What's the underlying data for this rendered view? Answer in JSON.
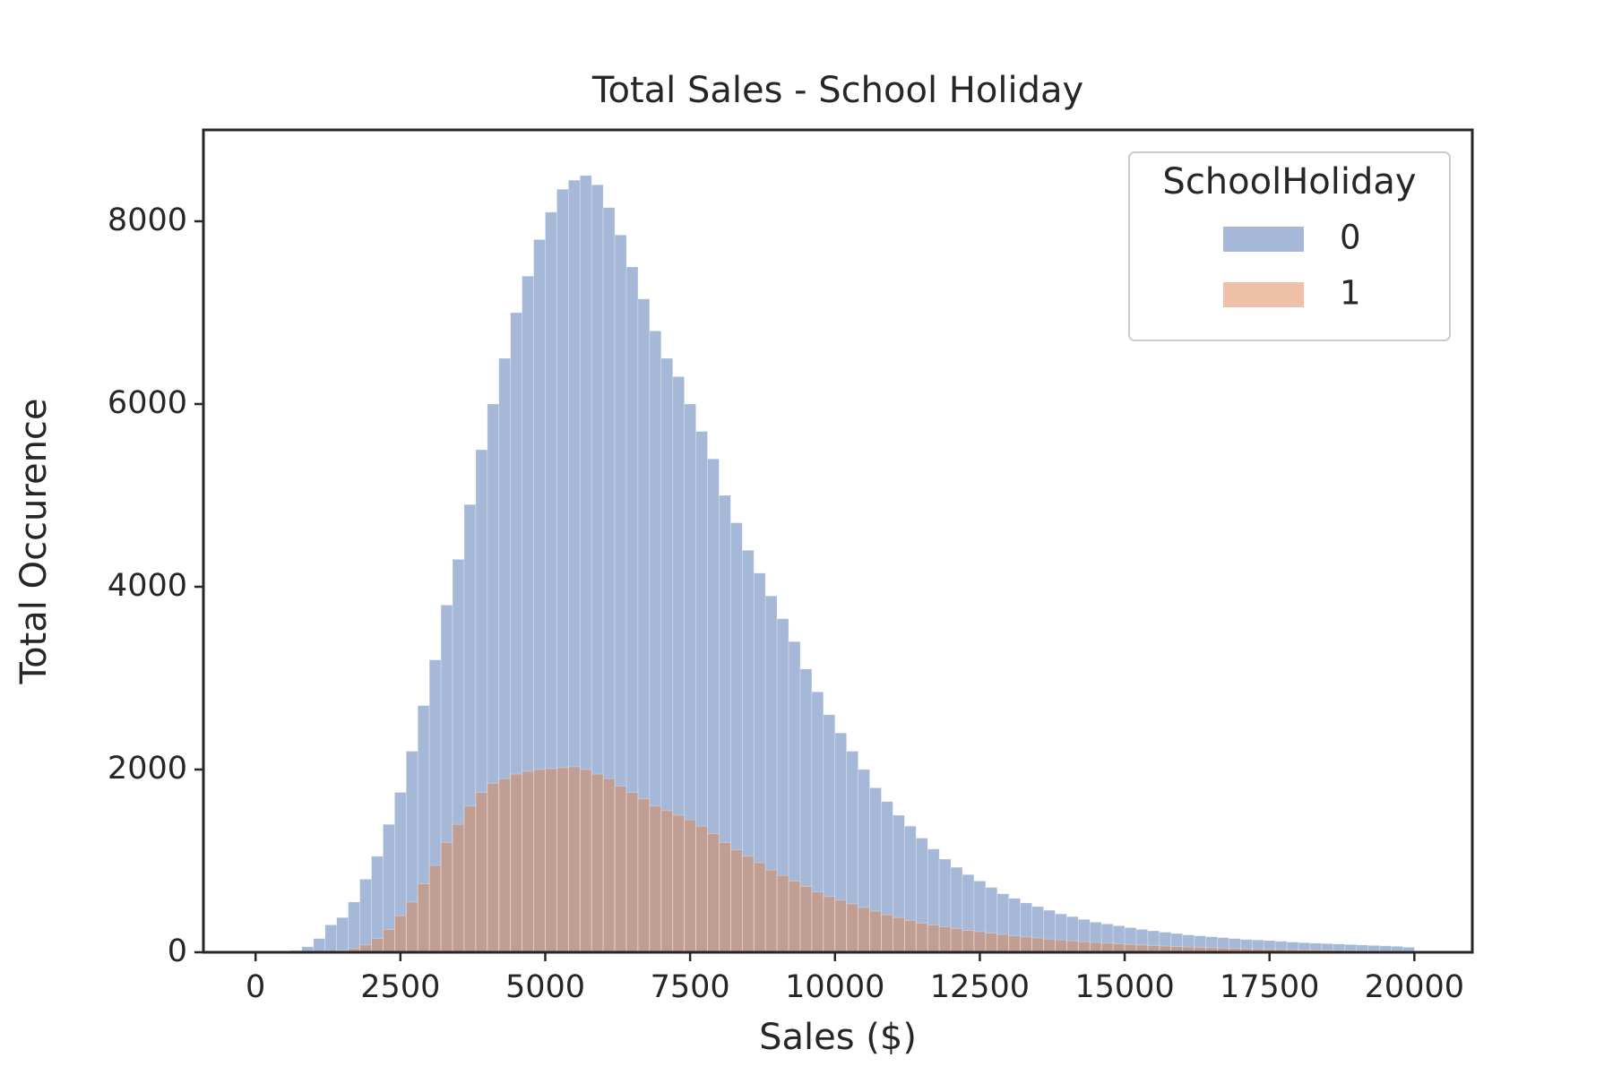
{
  "chart_data": {
    "type": "histogram",
    "title": "Total Sales - School Holiday",
    "xlabel": "Sales ($)",
    "ylabel": "Total Occurence",
    "legend_title": "SchoolHoliday",
    "legend": "upper right",
    "bins": [
      0,
      200,
      400,
      600,
      800,
      1000,
      1200,
      1400,
      1600,
      1800,
      2000,
      2200,
      2400,
      2600,
      2800,
      3000,
      3200,
      3400,
      3600,
      3800,
      4000,
      4200,
      4400,
      4600,
      4800,
      5000,
      5200,
      5400,
      5600,
      5800,
      6000,
      6200,
      6400,
      6600,
      6800,
      7000,
      7200,
      7400,
      7600,
      7800,
      8000,
      8200,
      8400,
      8600,
      8800,
      9000,
      9200,
      9400,
      9600,
      9800,
      10000,
      10200,
      10400,
      10600,
      10800,
      11000,
      11200,
      11400,
      11600,
      11800,
      12000,
      12200,
      12400,
      12600,
      12800,
      13000,
      13200,
      13400,
      13600,
      13800,
      14000,
      14200,
      14400,
      14600,
      14800,
      15000,
      15200,
      15400,
      15600,
      15800,
      16000,
      16200,
      16400,
      16600,
      16800,
      17000,
      17200,
      17400,
      17600,
      17800,
      18000,
      18200,
      18400,
      18600,
      18800,
      19000,
      19200,
      19400,
      19600,
      19800,
      20000
    ],
    "series": [
      {
        "name": "0",
        "color": "#4c72b0",
        "values": [
          0,
          0,
          5,
          20,
          60,
          150,
          300,
          380,
          550,
          800,
          1050,
          1400,
          1750,
          2200,
          2700,
          3200,
          3800,
          4300,
          4900,
          5500,
          6000,
          6500,
          7000,
          7400,
          7800,
          8100,
          8350,
          8450,
          8500,
          8400,
          8150,
          7850,
          7500,
          7150,
          6800,
          6500,
          6300,
          6000,
          5700,
          5400,
          5000,
          4700,
          4400,
          4150,
          3900,
          3650,
          3400,
          3100,
          2850,
          2600,
          2400,
          2200,
          2000,
          1800,
          1650,
          1500,
          1380,
          1250,
          1130,
          1020,
          930,
          850,
          780,
          710,
          640,
          590,
          540,
          500,
          460,
          420,
          390,
          360,
          330,
          310,
          290,
          270,
          250,
          235,
          220,
          205,
          190,
          180,
          170,
          160,
          150,
          140,
          135,
          128,
          120,
          112,
          105,
          100,
          95,
          90,
          85,
          80,
          75,
          70,
          65,
          55
        ]
      },
      {
        "name": "1",
        "color": "#dd8452",
        "values": [
          0,
          0,
          0,
          0,
          0,
          0,
          5,
          20,
          40,
          80,
          150,
          250,
          400,
          550,
          750,
          950,
          1200,
          1400,
          1600,
          1750,
          1850,
          1900,
          1950,
          1980,
          2000,
          2010,
          2020,
          2030,
          2000,
          1950,
          1900,
          1820,
          1750,
          1680,
          1600,
          1550,
          1500,
          1450,
          1380,
          1300,
          1200,
          1120,
          1050,
          980,
          900,
          840,
          780,
          720,
          660,
          610,
          570,
          530,
          490,
          450,
          410,
          380,
          350,
          320,
          300,
          280,
          260,
          240,
          225,
          210,
          195,
          180,
          168,
          156,
          145,
          135,
          125,
          115,
          107,
          100,
          92,
          85,
          79,
          73,
          68,
          63,
          58,
          54,
          50,
          46,
          43,
          40,
          37,
          34,
          31,
          29,
          27,
          25,
          23,
          21,
          19,
          18,
          17,
          16,
          15,
          14
        ]
      }
    ],
    "xlim": [
      -900,
      21000
    ],
    "ylim": [
      0,
      9000
    ],
    "xticks": [
      0,
      2500,
      5000,
      7500,
      10000,
      12500,
      15000,
      17500,
      20000
    ],
    "yticks": [
      0,
      2000,
      4000,
      6000,
      8000
    ]
  }
}
